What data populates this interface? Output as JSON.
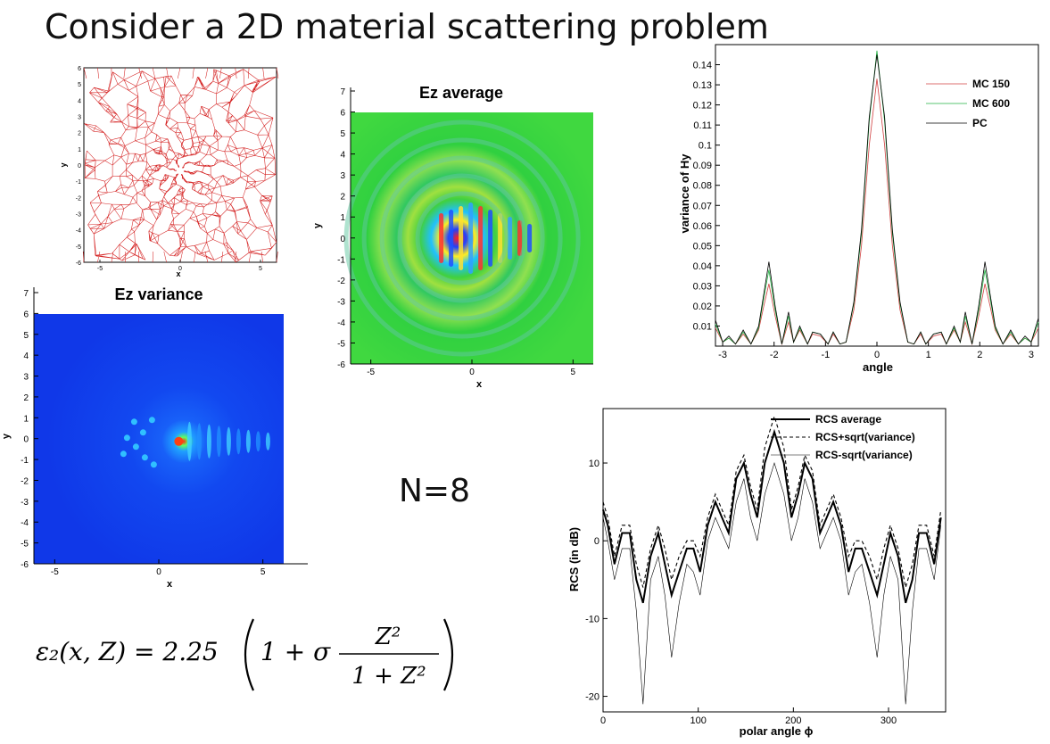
{
  "page": {
    "title": "Consider a 2D material scattering problem",
    "n_label": "N=8",
    "formula": {
      "lhs": "ε₂(x, Z) = 2.25",
      "one_plus_sigma": "1 + σ",
      "numerator": "Z²",
      "denominator": "1 + Z²"
    }
  },
  "colors": {
    "mesh": "#d42020",
    "mc150": "#d04040",
    "mc600": "#20b040",
    "pc": "#000000",
    "field_green": "#30d040",
    "variance_blue": "#1040f0"
  },
  "mesh_plot": {
    "xlabel": "x",
    "ylabel": "y",
    "xticks": [
      "-5",
      "0",
      "5"
    ],
    "yticks": [
      "6",
      "5",
      "4",
      "3",
      "2",
      "1",
      "0",
      "-1",
      "-2",
      "-3",
      "-4",
      "-5",
      "-6"
    ]
  },
  "ez_average": {
    "title": "Ez average",
    "xlabel": "x",
    "ylabel": "y",
    "xticks": [
      "-5",
      "0",
      "5"
    ],
    "yticks": [
      "7",
      "6",
      "5",
      "4",
      "3",
      "2",
      "1",
      "0",
      "-1",
      "-2",
      "-3",
      "-4",
      "-5",
      "-6"
    ]
  },
  "ez_variance": {
    "title": "Ez variance",
    "xlabel": "x",
    "ylabel": "y",
    "xticks": [
      "-5",
      "0",
      "5"
    ],
    "yticks": [
      "7",
      "6",
      "5",
      "4",
      "3",
      "2",
      "1",
      "0",
      "-1",
      "-2",
      "-3",
      "-4",
      "-5",
      "-6"
    ]
  },
  "chart_data": [
    {
      "type": "line",
      "xlabel": "angle",
      "ylabel": "variance of Hy",
      "xlim": [
        -3.14,
        3.14
      ],
      "ylim": [
        0,
        0.15
      ],
      "xticks": [
        -3,
        -2,
        -1,
        0,
        1,
        2,
        3
      ],
      "yticks": [
        0.01,
        0.02,
        0.03,
        0.04,
        0.05,
        0.06,
        0.07,
        0.08,
        0.09,
        0.1,
        0.11,
        0.12,
        0.13,
        0.14
      ],
      "legend_position": "top-right",
      "x": [
        -3.14,
        -3.0,
        -2.88,
        -2.75,
        -2.6,
        -2.45,
        -2.3,
        -2.2,
        -2.1,
        -1.98,
        -1.85,
        -1.72,
        -1.62,
        -1.5,
        -1.35,
        -1.25,
        -1.1,
        -0.95,
        -0.85,
        -0.72,
        -0.6,
        -0.45,
        -0.3,
        -0.15,
        0.0,
        0.15,
        0.3,
        0.45,
        0.6,
        0.72,
        0.85,
        0.95,
        1.1,
        1.25,
        1.35,
        1.5,
        1.62,
        1.72,
        1.85,
        1.98,
        2.1,
        2.2,
        2.3,
        2.45,
        2.6,
        2.75,
        2.88,
        3.0,
        3.14
      ],
      "series": [
        {
          "name": "MC 150",
          "values": [
            0.009,
            0.002,
            0.004,
            0.001,
            0.006,
            0.001,
            0.008,
            0.02,
            0.031,
            0.015,
            0.001,
            0.012,
            0.002,
            0.008,
            0.001,
            0.006,
            0.005,
            0.001,
            0.006,
            0.001,
            0.002,
            0.018,
            0.05,
            0.1,
            0.133,
            0.1,
            0.05,
            0.018,
            0.002,
            0.001,
            0.006,
            0.001,
            0.005,
            0.006,
            0.001,
            0.008,
            0.002,
            0.012,
            0.001,
            0.015,
            0.031,
            0.02,
            0.008,
            0.001,
            0.006,
            0.001,
            0.004,
            0.002,
            0.009
          ]
        },
        {
          "name": "MC 600",
          "values": [
            0.011,
            0.002,
            0.004,
            0.001,
            0.007,
            0.001,
            0.009,
            0.024,
            0.038,
            0.018,
            0.001,
            0.015,
            0.002,
            0.009,
            0.001,
            0.007,
            0.006,
            0.001,
            0.007,
            0.001,
            0.002,
            0.021,
            0.056,
            0.112,
            0.147,
            0.112,
            0.056,
            0.021,
            0.002,
            0.001,
            0.007,
            0.001,
            0.006,
            0.007,
            0.001,
            0.009,
            0.002,
            0.015,
            0.001,
            0.018,
            0.038,
            0.024,
            0.009,
            0.001,
            0.007,
            0.001,
            0.004,
            0.002,
            0.012
          ]
        },
        {
          "name": "PC",
          "values": [
            0.013,
            0.002,
            0.005,
            0.001,
            0.008,
            0.001,
            0.01,
            0.026,
            0.042,
            0.02,
            0.001,
            0.017,
            0.002,
            0.01,
            0.001,
            0.007,
            0.006,
            0.001,
            0.007,
            0.001,
            0.002,
            0.022,
            0.058,
            0.114,
            0.145,
            0.114,
            0.058,
            0.022,
            0.002,
            0.001,
            0.007,
            0.001,
            0.006,
            0.007,
            0.001,
            0.01,
            0.002,
            0.017,
            0.001,
            0.02,
            0.042,
            0.026,
            0.01,
            0.001,
            0.008,
            0.001,
            0.005,
            0.002,
            0.014
          ]
        }
      ]
    },
    {
      "type": "line",
      "xlabel": "polar angle ϕ",
      "ylabel": "RCS (in dB)",
      "xlim": [
        0,
        360
      ],
      "ylim": [
        -22,
        17
      ],
      "xticks": [
        0,
        100,
        200,
        300
      ],
      "yticks": [
        10,
        0,
        -10,
        -20
      ],
      "legend_position": "top-right",
      "x": [
        0,
        5,
        12,
        20,
        28,
        35,
        42,
        50,
        58,
        65,
        72,
        80,
        88,
        95,
        102,
        110,
        118,
        125,
        132,
        140,
        148,
        155,
        162,
        170,
        180,
        190,
        198,
        205,
        212,
        220,
        228,
        235,
        242,
        250,
        258,
        265,
        272,
        280,
        288,
        295,
        302,
        310,
        318,
        325,
        332,
        340,
        348,
        355
      ],
      "series": [
        {
          "name": "RCS average",
          "values": [
            4,
            2,
            -3,
            1,
            1,
            -5,
            -8,
            -2,
            1,
            -3,
            -7,
            -4,
            -1,
            -1,
            -4,
            2,
            5,
            3,
            1,
            8,
            10,
            6,
            3,
            10,
            14,
            10,
            3,
            6,
            10,
            8,
            1,
            3,
            5,
            2,
            -4,
            -1,
            -1,
            -4,
            -7,
            -3,
            1,
            -2,
            -8,
            -5,
            1,
            1,
            -3,
            3
          ]
        },
        {
          "name": "RCS+sqrt(variance)",
          "values": [
            5,
            3,
            -2,
            2,
            2,
            -3,
            -6,
            -1,
            2,
            -1,
            -5,
            -2,
            0,
            0,
            -2,
            3,
            6,
            4,
            2,
            9,
            11,
            7,
            4,
            12,
            16,
            12,
            4,
            7,
            11,
            9,
            2,
            4,
            6,
            3,
            -2,
            0,
            0,
            -2,
            -5,
            -1,
            2,
            -1,
            -6,
            -3,
            2,
            2,
            -2,
            4
          ]
        },
        {
          "name": "RCS-sqrt(variance)",
          "values": [
            3,
            0,
            -5,
            -1,
            -1,
            -9,
            -21,
            -5,
            -2,
            -7,
            -15,
            -8,
            -3,
            -4,
            -7,
            0,
            3,
            1,
            -1,
            5,
            8,
            3,
            0,
            6,
            10,
            6,
            0,
            3,
            8,
            5,
            -1,
            1,
            3,
            0,
            -7,
            -4,
            -3,
            -8,
            -15,
            -7,
            -2,
            -5,
            -21,
            -9,
            -1,
            -1,
            -5,
            2
          ]
        }
      ]
    }
  ]
}
